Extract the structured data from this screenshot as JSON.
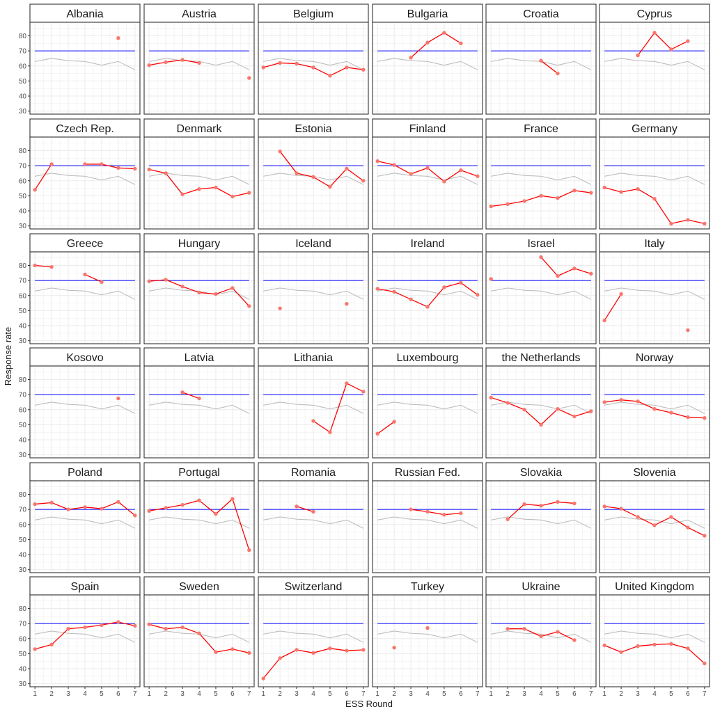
{
  "chart_data": {
    "type": "line",
    "xlabel": "ESS Round",
    "ylabel": "Response rate",
    "x_ticks": [
      1,
      2,
      3,
      4,
      5,
      6,
      7
    ],
    "y_ticks": [
      30,
      40,
      50,
      60,
      70,
      80
    ],
    "xlim": [
      0.7,
      7.3
    ],
    "ylim": [
      28,
      89
    ],
    "reference_line": 70,
    "average_series": [
      63,
      65,
      63.5,
      63,
      60.5,
      63,
      57.5
    ],
    "colors": {
      "series": "#ff0000",
      "points": "#f8766d",
      "reference": "#0000ff",
      "average": "#bebebe",
      "grid": "#ebebeb",
      "strip": "#ffffff",
      "panel_border": "#333333"
    },
    "panels": [
      {
        "country": "Albania",
        "values": [
          null,
          null,
          null,
          null,
          null,
          78.5,
          null
        ]
      },
      {
        "country": "Austria",
        "values": [
          60.5,
          62.5,
          64,
          62,
          null,
          null,
          52
        ]
      },
      {
        "country": "Belgium",
        "values": [
          59,
          62,
          61.5,
          59,
          53.5,
          59,
          57.5
        ]
      },
      {
        "country": "Bulgaria",
        "values": [
          null,
          null,
          65.5,
          75.5,
          82,
          75,
          null
        ]
      },
      {
        "country": "Croatia",
        "values": [
          null,
          null,
          null,
          63.5,
          55,
          null,
          null
        ]
      },
      {
        "country": "Cyprus",
        "values": [
          null,
          null,
          67,
          82,
          71,
          76.5,
          null
        ]
      },
      {
        "country": "Czech Rep.",
        "values": [
          54,
          71,
          null,
          71,
          71,
          68.5,
          68
        ]
      },
      {
        "country": "Denmark",
        "values": [
          67.5,
          65,
          51,
          54.5,
          55.5,
          49.5,
          52
        ]
      },
      {
        "country": "Estonia",
        "values": [
          null,
          79.5,
          65,
          62.5,
          56,
          68,
          60
        ]
      },
      {
        "country": "Finland",
        "values": [
          73,
          70.5,
          64.5,
          68.5,
          59.5,
          67,
          63
        ]
      },
      {
        "country": "France",
        "values": [
          43,
          44.5,
          46.5,
          50,
          48.5,
          53.5,
          52
        ]
      },
      {
        "country": "Germany",
        "values": [
          55.5,
          52.5,
          54.5,
          48,
          31.5,
          34,
          31.5
        ]
      },
      {
        "country": "Greece",
        "values": [
          80,
          79,
          null,
          74,
          69,
          null,
          null
        ]
      },
      {
        "country": "Hungary",
        "values": [
          69.5,
          70.5,
          66,
          62,
          61,
          65,
          53
        ]
      },
      {
        "country": "Iceland",
        "values": [
          null,
          51.5,
          null,
          null,
          null,
          54.5,
          null
        ]
      },
      {
        "country": "Ireland",
        "values": [
          64.5,
          62.5,
          57.5,
          52.5,
          65.5,
          68.5,
          60.5
        ]
      },
      {
        "country": "Israel",
        "values": [
          71,
          null,
          null,
          85.5,
          73,
          78,
          74.5
        ]
      },
      {
        "country": "Italy",
        "values": [
          43.5,
          61,
          null,
          null,
          null,
          37,
          null
        ]
      },
      {
        "country": "Kosovo",
        "values": [
          null,
          null,
          null,
          null,
          null,
          67.5,
          null
        ]
      },
      {
        "country": "Latvia",
        "values": [
          null,
          null,
          71.5,
          67.5,
          null,
          null,
          null
        ]
      },
      {
        "country": "Lithania",
        "values": [
          null,
          null,
          null,
          52.5,
          45,
          77.5,
          72
        ]
      },
      {
        "country": "Luxembourg",
        "values": [
          44,
          52,
          null,
          null,
          null,
          null,
          null
        ]
      },
      {
        "country": "the Netherlands",
        "values": [
          68,
          64.5,
          60,
          50,
          60.5,
          55.5,
          59
        ]
      },
      {
        "country": "Norway",
        "values": [
          65,
          66.5,
          65.5,
          60.5,
          58,
          55,
          54.5
        ]
      },
      {
        "country": "Poland",
        "values": [
          73.5,
          74.5,
          70,
          71.5,
          70.5,
          75,
          66
        ]
      },
      {
        "country": "Portugal",
        "values": [
          69,
          71,
          73,
          76,
          67,
          77,
          43
        ]
      },
      {
        "country": "Romania",
        "values": [
          null,
          null,
          72,
          68.5,
          null,
          null,
          null
        ]
      },
      {
        "country": "Russian Fed.",
        "values": [
          null,
          null,
          70,
          68.5,
          66.5,
          67.5,
          null
        ]
      },
      {
        "country": "Slovakia",
        "values": [
          null,
          63.5,
          73.5,
          72.5,
          75,
          74,
          null
        ]
      },
      {
        "country": "Slovenia",
        "values": [
          72,
          70.5,
          65,
          59.5,
          65,
          58,
          52.5
        ]
      },
      {
        "country": "Spain",
        "values": [
          53,
          56,
          66.5,
          67.5,
          69,
          71,
          68.5
        ]
      },
      {
        "country": "Sweden",
        "values": [
          69.5,
          66.5,
          67.5,
          63.5,
          51,
          53,
          50.5
        ]
      },
      {
        "country": "Switzerland",
        "values": [
          33.5,
          47,
          52.5,
          50.5,
          53.5,
          52,
          52.5
        ]
      },
      {
        "country": "Turkey",
        "values": [
          null,
          54,
          null,
          67,
          null,
          null,
          null
        ]
      },
      {
        "country": "Ukraine",
        "values": [
          null,
          66.5,
          66.5,
          61.5,
          64.5,
          59,
          null
        ]
      },
      {
        "country": "United Kingdom",
        "values": [
          55.5,
          51,
          55,
          56,
          56.5,
          53.5,
          43.5
        ]
      }
    ]
  }
}
